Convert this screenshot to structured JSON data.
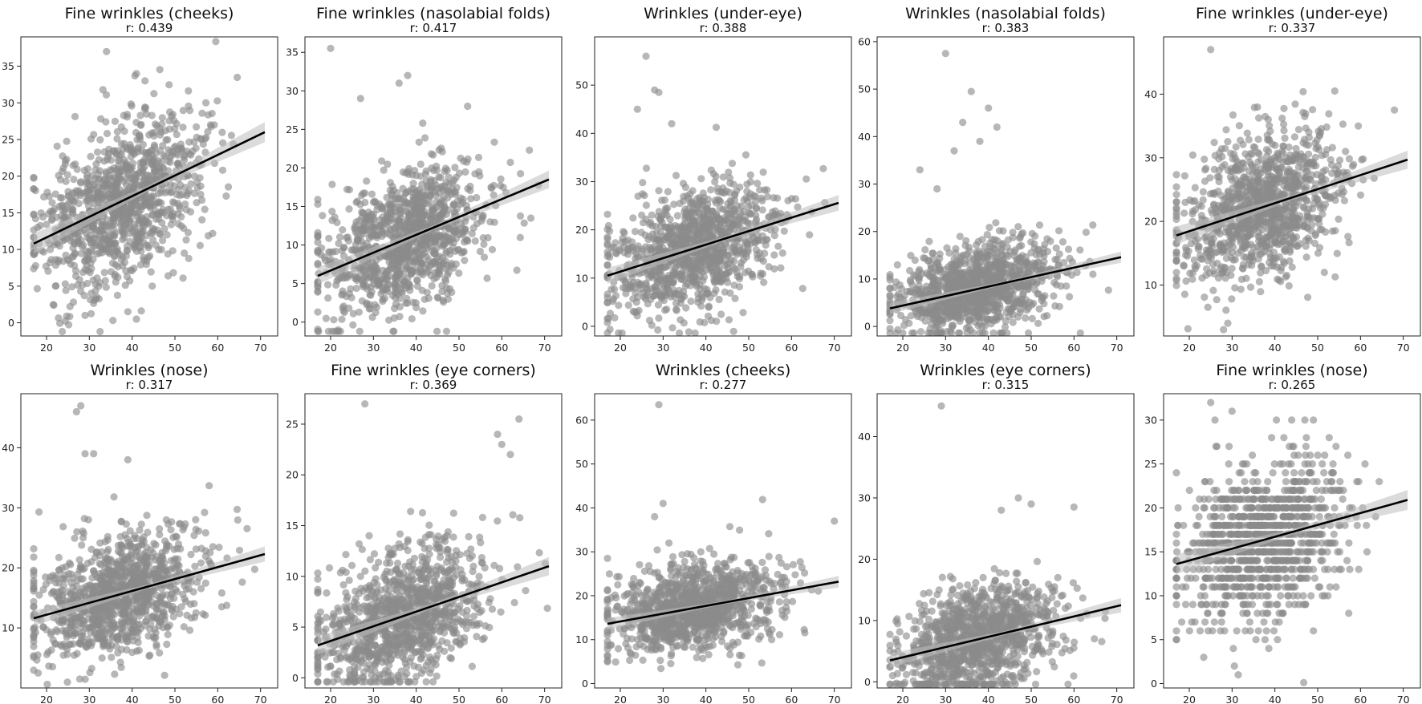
{
  "chart_data": [
    {
      "type": "scatter",
      "title": "Fine wrinkles (cheeks)",
      "subtitle": "r: 0.439",
      "xlabel": "",
      "ylabel": "",
      "xlim": [
        14,
        74
      ],
      "ylim": [
        -1.8,
        39
      ],
      "xticks": [
        20,
        30,
        40,
        50,
        60,
        70
      ],
      "yticks": [
        0,
        5,
        10,
        15,
        20,
        25,
        30,
        35
      ],
      "point_color": "#8a8a8a",
      "line_color": "#000000",
      "regression": {
        "x": [
          17,
          71
        ],
        "y": [
          10.8,
          26.0
        ]
      },
      "scatter": {
        "n": 1100,
        "x_mean": 37,
        "x_sd": 9.5,
        "residual_sd": 5.2,
        "seed": 11,
        "outliers": [
          [
            34,
            37
          ],
          [
            41,
            34
          ],
          [
            43,
            33
          ],
          [
            39,
            1.5
          ],
          [
            41,
            0.5
          ],
          [
            29,
            1
          ]
        ]
      }
    },
    {
      "type": "scatter",
      "title": "Fine wrinkles (nasolabial folds)",
      "subtitle": "r: 0.417",
      "xlabel": "",
      "ylabel": "",
      "xlim": [
        14,
        74
      ],
      "ylim": [
        -1.8,
        37
      ],
      "xticks": [
        20,
        30,
        40,
        50,
        60,
        70
      ],
      "yticks": [
        0,
        5,
        10,
        15,
        20,
        25,
        30,
        35
      ],
      "point_color": "#8a8a8a",
      "line_color": "#000000",
      "regression": {
        "x": [
          17,
          71
        ],
        "y": [
          6.0,
          18.5
        ]
      },
      "scatter": {
        "n": 1100,
        "x_mean": 37,
        "x_sd": 9.5,
        "residual_sd": 4.3,
        "seed": 22,
        "outliers": [
          [
            20,
            35.5
          ],
          [
            38,
            32
          ],
          [
            36,
            31
          ],
          [
            27,
            29
          ],
          [
            52,
            28
          ]
        ]
      }
    },
    {
      "type": "scatter",
      "title": "Wrinkles (under-eye)",
      "subtitle": "r: 0.388",
      "xlabel": "",
      "ylabel": "",
      "xlim": [
        14,
        74
      ],
      "ylim": [
        -2,
        60
      ],
      "xticks": [
        20,
        30,
        40,
        50,
        60,
        70
      ],
      "yticks": [
        0,
        10,
        20,
        30,
        40,
        50
      ],
      "point_color": "#8a8a8a",
      "line_color": "#000000",
      "regression": {
        "x": [
          17,
          71
        ],
        "y": [
          10.5,
          25.6
        ]
      },
      "scatter": {
        "n": 1100,
        "x_mean": 37,
        "x_sd": 9.5,
        "residual_sd": 6.2,
        "seed": 33,
        "outliers": [
          [
            26,
            56
          ],
          [
            28,
            49
          ],
          [
            29,
            48.5
          ],
          [
            24,
            45
          ],
          [
            32,
            42
          ]
        ]
      }
    },
    {
      "type": "scatter",
      "title": "Wrinkles (nasolabial folds)",
      "subtitle": "r: 0.383",
      "xlabel": "",
      "ylabel": "",
      "xlim": [
        14,
        74
      ],
      "ylim": [
        -2,
        61
      ],
      "xticks": [
        20,
        30,
        40,
        50,
        60,
        70
      ],
      "yticks": [
        0,
        10,
        20,
        30,
        40,
        50,
        60
      ],
      "point_color": "#8a8a8a",
      "line_color": "#000000",
      "regression": {
        "x": [
          17,
          71
        ],
        "y": [
          3.8,
          14.6
        ]
      },
      "scatter": {
        "n": 1100,
        "x_mean": 37,
        "x_sd": 9.5,
        "residual_sd": 4.5,
        "seed": 44,
        "outliers": [
          [
            30,
            57.5
          ],
          [
            36,
            49.5
          ],
          [
            40,
            46
          ],
          [
            34,
            43
          ],
          [
            42,
            42
          ],
          [
            38,
            39
          ],
          [
            32,
            37
          ],
          [
            24,
            33
          ],
          [
            28,
            29
          ]
        ]
      }
    },
    {
      "type": "scatter",
      "title": "Fine wrinkles (under-eye)",
      "subtitle": "r: 0.337",
      "xlabel": "",
      "ylabel": "",
      "xlim": [
        14,
        74
      ],
      "ylim": [
        2,
        49
      ],
      "xticks": [
        20,
        30,
        40,
        50,
        60,
        70
      ],
      "yticks": [
        10,
        20,
        30,
        40
      ],
      "point_color": "#8a8a8a",
      "line_color": "#000000",
      "regression": {
        "x": [
          17,
          71
        ],
        "y": [
          17.8,
          29.7
        ]
      },
      "scatter": {
        "n": 1100,
        "x_mean": 37,
        "x_sd": 9.5,
        "residual_sd": 5.4,
        "seed": 55,
        "outliers": [
          [
            25,
            47
          ],
          [
            28,
            3
          ],
          [
            29,
            4
          ],
          [
            54,
            40.5
          ]
        ]
      }
    },
    {
      "type": "scatter",
      "title": "Wrinkles (nose)",
      "subtitle": "r: 0.317",
      "xlabel": "",
      "ylabel": "",
      "xlim": [
        14,
        74
      ],
      "ylim": [
        0,
        49
      ],
      "xticks": [
        20,
        30,
        40,
        50,
        60,
        70
      ],
      "yticks": [
        10,
        20,
        30,
        40
      ],
      "point_color": "#8a8a8a",
      "line_color": "#000000",
      "regression": {
        "x": [
          17,
          71
        ],
        "y": [
          11.6,
          22.3
        ]
      },
      "scatter": {
        "n": 1100,
        "x_mean": 37,
        "x_sd": 9.5,
        "residual_sd": 4.8,
        "seed": 66,
        "outliers": [
          [
            27,
            46
          ],
          [
            28,
            47
          ],
          [
            29,
            39
          ],
          [
            31,
            39
          ],
          [
            39,
            38
          ]
        ]
      }
    },
    {
      "type": "scatter",
      "title": "Fine wrinkles (eye corners)",
      "subtitle": "r: 0.369",
      "xlabel": "",
      "ylabel": "",
      "xlim": [
        14,
        74
      ],
      "ylim": [
        -1,
        28
      ],
      "xticks": [
        20,
        30,
        40,
        50,
        60,
        70
      ],
      "yticks": [
        0,
        5,
        10,
        15,
        20,
        25
      ],
      "point_color": "#8a8a8a",
      "line_color": "#000000",
      "regression": {
        "x": [
          17,
          71
        ],
        "y": [
          3.2,
          11.0
        ]
      },
      "scatter": {
        "n": 1100,
        "x_mean": 37,
        "x_sd": 9.5,
        "residual_sd": 3.4,
        "seed": 77,
        "outliers": [
          [
            28,
            27
          ],
          [
            64,
            25.5
          ],
          [
            59,
            24
          ],
          [
            60,
            23
          ],
          [
            62,
            22
          ]
        ]
      }
    },
    {
      "type": "scatter",
      "title": "Wrinkles (cheeks)",
      "subtitle": "r: 0.277",
      "xlabel": "",
      "ylabel": "",
      "xlim": [
        14,
        74
      ],
      "ylim": [
        -1,
        66
      ],
      "xticks": [
        20,
        30,
        40,
        50,
        60,
        70
      ],
      "yticks": [
        0,
        10,
        20,
        30,
        40,
        50,
        60
      ],
      "point_color": "#8a8a8a",
      "line_color": "#000000",
      "regression": {
        "x": [
          17,
          71
        ],
        "y": [
          13.6,
          23.2
        ]
      },
      "scatter": {
        "n": 1100,
        "x_mean": 37,
        "x_sd": 9.5,
        "residual_sd": 5.0,
        "seed": 88,
        "outliers": [
          [
            29,
            63.5
          ],
          [
            30,
            41
          ],
          [
            28,
            38
          ],
          [
            70,
            37
          ]
        ]
      }
    },
    {
      "type": "scatter",
      "title": "Wrinkles (eye corners)",
      "subtitle": "r: 0.315",
      "xlabel": "",
      "ylabel": "",
      "xlim": [
        14,
        74
      ],
      "ylim": [
        -1,
        47
      ],
      "xticks": [
        20,
        30,
        40,
        50,
        60,
        70
      ],
      "yticks": [
        0,
        10,
        20,
        30,
        40
      ],
      "point_color": "#8a8a8a",
      "line_color": "#000000",
      "regression": {
        "x": [
          17,
          71
        ],
        "y": [
          3.5,
          12.5
        ]
      },
      "scatter": {
        "n": 1100,
        "x_mean": 37,
        "x_sd": 9.5,
        "residual_sd": 4.4,
        "seed": 99,
        "outliers": [
          [
            29,
            45
          ],
          [
            47,
            30
          ],
          [
            50,
            29
          ],
          [
            43,
            28
          ],
          [
            60,
            28.5
          ]
        ]
      }
    },
    {
      "type": "scatter",
      "title": "Fine wrinkles (nose)",
      "subtitle": "r: 0.265",
      "xlabel": "",
      "ylabel": "",
      "xlim": [
        14,
        74
      ],
      "ylim": [
        -0.5,
        33
      ],
      "xticks": [
        20,
        30,
        40,
        50,
        60,
        70
      ],
      "yticks": [
        0,
        5,
        10,
        15,
        20,
        25,
        30
      ],
      "point_color": "#8a8a8a",
      "line_color": "#000000",
      "regression": {
        "x": [
          17,
          71
        ],
        "y": [
          13.6,
          20.9
        ]
      },
      "scatter": {
        "n": 1100,
        "x_mean": 37,
        "x_sd": 9.5,
        "residual_sd": 4.3,
        "seed": 111,
        "integer_y": true,
        "outliers": [
          [
            25,
            32
          ],
          [
            30,
            31
          ],
          [
            26,
            30
          ],
          [
            47,
            30
          ],
          [
            49,
            30
          ]
        ]
      }
    }
  ]
}
